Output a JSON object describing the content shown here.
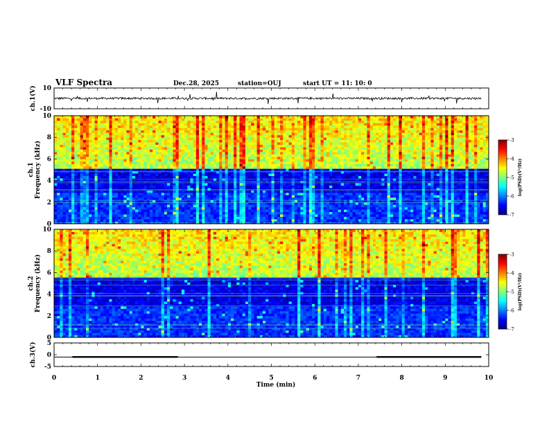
{
  "header": {
    "title": "VLF Spectra",
    "date": "Dec.28, 2025",
    "station": "station=OUJ",
    "start": "start  UT =   11: 10: 0"
  },
  "colors": {
    "axis": "#000000",
    "colormap": [
      "#00007f",
      "#0000ff",
      "#007fff",
      "#00ffff",
      "#7fff7f",
      "#ffff00",
      "#ff7f00",
      "#ff0000",
      "#7f0000"
    ]
  },
  "chart_data": [
    {
      "type": "line",
      "name": "ch1-waveform",
      "ylabel": "ch.1(V)",
      "ylim": [
        -10,
        10
      ],
      "yticks": [
        "10",
        "-10"
      ],
      "xlim": [
        0,
        10
      ],
      "x_data_range": [
        0,
        9.83
      ],
      "baseline": 0,
      "noise_amplitude": 1
    },
    {
      "type": "heatmap",
      "name": "ch1-spectrogram",
      "ylabel": "ch.1\nFrequency (kHz)",
      "ylim": [
        0,
        10
      ],
      "yticks": [
        "0",
        "2",
        "4",
        "6",
        "8",
        "10"
      ],
      "xlim": [
        0,
        10
      ],
      "colorbar": {
        "label": "log(PSD)(V²/Hz)",
        "range": [
          -7,
          -3
        ],
        "ticks": [
          "-3",
          "-4",
          "-5",
          "-6",
          "-7"
        ]
      },
      "cutoff_khz": 5.2
    },
    {
      "type": "heatmap",
      "name": "ch2-spectrogram",
      "ylabel": "ch.2\nFrequency (kHz)",
      "ylim": [
        0,
        10
      ],
      "yticks": [
        "0",
        "2",
        "4",
        "6",
        "8",
        "10"
      ],
      "xlim": [
        0,
        10
      ],
      "colorbar": {
        "label": "log(PSD)(V²/Hz)",
        "range": [
          -7,
          -3
        ],
        "ticks": [
          "-3",
          "-4",
          "-5",
          "-6",
          "-7"
        ]
      },
      "cutoff_khz": 5.6
    },
    {
      "type": "line",
      "name": "ch3-signal",
      "ylabel": "ch.3(V)",
      "ylim": [
        -5,
        5
      ],
      "yticks": [
        "5",
        "0",
        "-5"
      ],
      "xlim": [
        0,
        10
      ],
      "baseline": -1,
      "high_value": -0.6,
      "high_intervals": [
        [
          0.42,
          2.85
        ],
        [
          7.42,
          9.83
        ]
      ],
      "x_data_range": [
        0,
        9.83
      ]
    }
  ],
  "xaxis": {
    "label": "Time (min)",
    "ticks": [
      "0",
      "1",
      "2",
      "3",
      "4",
      "5",
      "6",
      "7",
      "8",
      "9",
      "10"
    ]
  }
}
